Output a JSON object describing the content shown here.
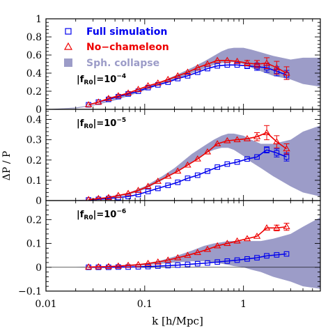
{
  "chart_data": {
    "type": "scatter",
    "xlabel": "k [h/Mpc]",
    "ylabel": "ΔP / P",
    "xscale": "log",
    "xlim": [
      0.01,
      6.0
    ],
    "x_tick_labels": [
      "0.01",
      "0.1",
      "1"
    ],
    "x_tick_values": [
      0.01,
      0.1,
      1
    ],
    "colors": {
      "full": "#0000ee",
      "nocham": "#ee0000",
      "band": "#9c9cc8",
      "axis": "#000000"
    },
    "legend": {
      "placement": "top-left of top panel",
      "entries": [
        {
          "label": "Full simulation",
          "marker": "square",
          "color": "#0000ee"
        },
        {
          "label": "No−chameleon",
          "marker": "triangle",
          "color": "#ee0000"
        },
        {
          "label": "Sph. collapse",
          "marker": "filled-square",
          "color": "#9c9cc8"
        }
      ]
    },
    "panels": [
      {
        "label": "|f_R0| = 10^-4",
        "label_base": "|f",
        "label_sub": "R0",
        "label_exp": "10",
        "label_pow": "−4",
        "ylim": [
          0,
          1.0
        ],
        "y_tick_labels": [
          "0",
          "0.2",
          "0.4",
          "0.6",
          "0.8",
          "1"
        ],
        "y_tick_values": [
          0,
          0.2,
          0.4,
          0.6,
          0.8,
          1.0
        ],
        "full_simulation": {
          "x": [
            0.027,
            0.034,
            0.043,
            0.054,
            0.068,
            0.086,
            0.108,
            0.136,
            0.172,
            0.216,
            0.272,
            0.343,
            0.432,
            0.544,
            0.685,
            0.863,
            1.09,
            1.37,
            1.72,
            2.17,
            2.73
          ],
          "y": [
            0.05,
            0.08,
            0.11,
            0.14,
            0.17,
            0.2,
            0.24,
            0.27,
            0.3,
            0.34,
            0.37,
            0.41,
            0.45,
            0.48,
            0.49,
            0.49,
            0.48,
            0.47,
            0.46,
            0.42,
            0.38
          ],
          "err": [
            0.01,
            0.01,
            0.01,
            0.01,
            0.01,
            0.01,
            0.01,
            0.01,
            0.01,
            0.01,
            0.01,
            0.01,
            0.01,
            0.02,
            0.02,
            0.02,
            0.03,
            0.04,
            0.05,
            0.05,
            0.05
          ]
        },
        "no_chameleon": {
          "x": [
            0.027,
            0.034,
            0.043,
            0.054,
            0.068,
            0.086,
            0.108,
            0.136,
            0.172,
            0.216,
            0.272,
            0.343,
            0.432,
            0.544,
            0.685,
            0.863,
            1.09,
            1.37,
            1.72,
            2.17,
            2.73
          ],
          "y": [
            0.05,
            0.08,
            0.12,
            0.15,
            0.18,
            0.22,
            0.26,
            0.29,
            0.33,
            0.37,
            0.41,
            0.46,
            0.5,
            0.54,
            0.54,
            0.53,
            0.51,
            0.5,
            0.51,
            0.46,
            0.4
          ],
          "err": [
            0.01,
            0.01,
            0.01,
            0.01,
            0.01,
            0.01,
            0.01,
            0.01,
            0.01,
            0.01,
            0.01,
            0.01,
            0.01,
            0.02,
            0.02,
            0.02,
            0.03,
            0.04,
            0.06,
            0.07,
            0.07
          ]
        },
        "sph_collapse": {
          "x": [
            0.01,
            0.02,
            0.03,
            0.05,
            0.07,
            0.1,
            0.15,
            0.2,
            0.3,
            0.4,
            0.5,
            0.6,
            0.7,
            0.8,
            1.0,
            1.2,
            1.5,
            2.0,
            3.0,
            4.0,
            6.0
          ],
          "upper": [
            0.0,
            0.02,
            0.05,
            0.12,
            0.17,
            0.24,
            0.31,
            0.37,
            0.46,
            0.53,
            0.59,
            0.64,
            0.67,
            0.68,
            0.68,
            0.66,
            0.63,
            0.59,
            0.55,
            0.57,
            0.57
          ],
          "lower": [
            0.0,
            0.01,
            0.04,
            0.1,
            0.15,
            0.21,
            0.28,
            0.33,
            0.4,
            0.45,
            0.49,
            0.51,
            0.52,
            0.52,
            0.5,
            0.46,
            0.42,
            0.37,
            0.33,
            0.28,
            0.25
          ]
        }
      },
      {
        "label": "|f_R0| = 10^-5",
        "label_base": "|f",
        "label_sub": "R0",
        "label_exp": "10",
        "label_pow": "−5",
        "ylim": [
          0,
          0.45
        ],
        "y_tick_labels": [
          "0",
          "0.1",
          "0.2",
          "0.3",
          "0.4"
        ],
        "y_tick_values": [
          0,
          0.1,
          0.2,
          0.3,
          0.4
        ],
        "full_simulation": {
          "x": [
            0.027,
            0.034,
            0.043,
            0.054,
            0.068,
            0.086,
            0.108,
            0.136,
            0.172,
            0.216,
            0.272,
            0.343,
            0.432,
            0.544,
            0.685,
            0.863,
            1.09,
            1.37,
            1.72,
            2.17,
            2.73
          ],
          "y": [
            0.003,
            0.006,
            0.01,
            0.015,
            0.02,
            0.03,
            0.045,
            0.06,
            0.075,
            0.09,
            0.11,
            0.125,
            0.145,
            0.165,
            0.18,
            0.19,
            0.205,
            0.215,
            0.25,
            0.235,
            0.215
          ],
          "err": [
            0.003,
            0.003,
            0.003,
            0.003,
            0.004,
            0.004,
            0.004,
            0.004,
            0.004,
            0.004,
            0.005,
            0.005,
            0.005,
            0.006,
            0.006,
            0.007,
            0.008,
            0.01,
            0.015,
            0.02,
            0.02
          ]
        },
        "no_chameleon": {
          "x": [
            0.027,
            0.034,
            0.043,
            0.054,
            0.068,
            0.086,
            0.108,
            0.136,
            0.172,
            0.216,
            0.272,
            0.343,
            0.432,
            0.544,
            0.685,
            0.863,
            1.09,
            1.37,
            1.72,
            2.17,
            2.73
          ],
          "y": [
            0.005,
            0.01,
            0.015,
            0.025,
            0.035,
            0.05,
            0.07,
            0.095,
            0.12,
            0.145,
            0.175,
            0.205,
            0.24,
            0.28,
            0.295,
            0.3,
            0.305,
            0.315,
            0.335,
            0.29,
            0.255
          ],
          "err": [
            0.003,
            0.003,
            0.003,
            0.003,
            0.004,
            0.004,
            0.004,
            0.005,
            0.005,
            0.005,
            0.006,
            0.006,
            0.007,
            0.008,
            0.009,
            0.01,
            0.012,
            0.02,
            0.035,
            0.03,
            0.025
          ]
        },
        "sph_collapse": {
          "x": [
            0.01,
            0.02,
            0.03,
            0.05,
            0.07,
            0.1,
            0.15,
            0.2,
            0.3,
            0.4,
            0.5,
            0.6,
            0.7,
            0.8,
            1.0,
            1.2,
            1.5,
            2.0,
            3.0,
            4.0,
            6.0
          ],
          "upper": [
            0.0,
            0.002,
            0.006,
            0.02,
            0.04,
            0.07,
            0.12,
            0.16,
            0.23,
            0.27,
            0.3,
            0.32,
            0.33,
            0.33,
            0.32,
            0.3,
            0.28,
            0.28,
            0.3,
            0.34,
            0.37
          ],
          "lower": [
            0.0,
            0.001,
            0.004,
            0.015,
            0.03,
            0.055,
            0.1,
            0.135,
            0.19,
            0.23,
            0.25,
            0.26,
            0.26,
            0.25,
            0.22,
            0.19,
            0.16,
            0.12,
            0.07,
            0.04,
            0.02
          ]
        }
      },
      {
        "label": "|f_R0| = 10^-6",
        "label_base": "|f",
        "label_sub": "R0",
        "label_exp": "10",
        "label_pow": "−6",
        "ylim": [
          -0.1,
          0.28
        ],
        "y_tick_labels": [
          "−0.1",
          "0",
          "0.1",
          "0.2"
        ],
        "y_tick_values": [
          -0.1,
          0,
          0.1,
          0.2
        ],
        "full_simulation": {
          "x": [
            0.027,
            0.034,
            0.043,
            0.054,
            0.068,
            0.086,
            0.108,
            0.136,
            0.172,
            0.216,
            0.272,
            0.343,
            0.432,
            0.544,
            0.685,
            0.863,
            1.09,
            1.37,
            1.72,
            2.17,
            2.73
          ],
          "y": [
            0.0,
            0.0,
            0.0,
            0.001,
            0.001,
            0.002,
            0.003,
            0.005,
            0.007,
            0.009,
            0.012,
            0.015,
            0.018,
            0.022,
            0.026,
            0.03,
            0.035,
            0.04,
            0.048,
            0.052,
            0.056
          ],
          "err": [
            0.003,
            0.003,
            0.003,
            0.003,
            0.003,
            0.003,
            0.003,
            0.003,
            0.003,
            0.003,
            0.003,
            0.003,
            0.003,
            0.003,
            0.003,
            0.004,
            0.004,
            0.005,
            0.006,
            0.007,
            0.008
          ]
        },
        "no_chameleon": {
          "x": [
            0.027,
            0.034,
            0.043,
            0.054,
            0.068,
            0.086,
            0.108,
            0.136,
            0.172,
            0.216,
            0.272,
            0.343,
            0.432,
            0.544,
            0.685,
            0.863,
            1.09,
            1.37,
            1.72,
            2.17,
            2.73
          ],
          "y": [
            0.001,
            0.002,
            0.003,
            0.005,
            0.008,
            0.011,
            0.016,
            0.022,
            0.03,
            0.04,
            0.05,
            0.062,
            0.075,
            0.09,
            0.1,
            0.11,
            0.12,
            0.13,
            0.165,
            0.165,
            0.17
          ],
          "err": [
            0.003,
            0.003,
            0.003,
            0.003,
            0.003,
            0.003,
            0.003,
            0.003,
            0.003,
            0.004,
            0.004,
            0.004,
            0.005,
            0.005,
            0.006,
            0.007,
            0.008,
            0.01,
            0.01,
            0.012,
            0.015
          ]
        },
        "sph_collapse": {
          "x": [
            0.01,
            0.02,
            0.03,
            0.05,
            0.07,
            0.1,
            0.15,
            0.2,
            0.3,
            0.4,
            0.5,
            0.6,
            0.7,
            0.8,
            1.0,
            1.2,
            1.5,
            2.0,
            3.0,
            4.0,
            6.0
          ],
          "upper": [
            0.0,
            0.001,
            0.002,
            0.004,
            0.008,
            0.015,
            0.03,
            0.045,
            0.07,
            0.09,
            0.1,
            0.105,
            0.11,
            0.11,
            0.11,
            0.11,
            0.11,
            0.12,
            0.14,
            0.17,
            0.21
          ],
          "lower": [
            0.0,
            0.0,
            0.001,
            0.002,
            0.004,
            0.008,
            0.015,
            0.02,
            0.025,
            0.025,
            0.02,
            0.015,
            0.01,
            0.005,
            0.0,
            -0.01,
            -0.02,
            -0.04,
            -0.06,
            -0.08,
            -0.09
          ]
        }
      }
    ]
  }
}
